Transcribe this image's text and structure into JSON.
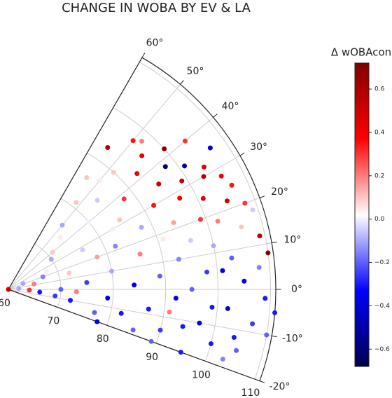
{
  "chart_data": {
    "type": "scatter",
    "polar": true,
    "title": "CHANGE IN WOBA BY EV & LA",
    "colorbar_label": "Δ wOBAcon",
    "colormap": "seismic",
    "r": [
      62,
      65,
      66,
      68,
      70,
      70,
      72,
      72,
      74,
      75,
      76,
      77,
      78,
      79,
      80,
      80,
      81,
      82,
      83,
      84,
      84,
      85,
      86,
      86,
      87,
      88,
      88,
      89,
      90,
      90,
      91,
      92,
      92,
      93,
      93,
      94,
      94,
      95,
      95,
      96,
      96,
      97,
      97,
      98,
      98,
      99,
      99,
      100,
      100,
      100,
      101,
      101,
      102,
      102,
      103,
      103,
      104,
      104,
      105,
      105,
      106,
      106,
      107,
      107,
      108,
      108,
      109,
      109,
      110,
      110,
      64,
      67,
      69,
      71,
      73,
      76,
      78,
      82,
      85,
      87,
      89,
      91,
      93,
      95,
      97,
      99,
      101,
      103,
      105,
      107,
      109,
      111,
      60,
      63,
      98,
      104
    ],
    "theta": [
      5,
      12,
      -5,
      25,
      0,
      35,
      -10,
      15,
      45,
      5,
      28,
      -15,
      20,
      -5,
      40,
      10,
      52,
      -12,
      30,
      2,
      45,
      -18,
      15,
      55,
      -8,
      25,
      38,
      5,
      48,
      -15,
      18,
      30,
      -3,
      42,
      10,
      -12,
      22,
      35,
      0,
      45,
      15,
      28,
      -10,
      38,
      5,
      20,
      32,
      -15,
      42,
      12,
      25,
      35,
      -5,
      18,
      30,
      8,
      40,
      -12,
      22,
      2,
      28,
      15,
      -8,
      35,
      20,
      5,
      12,
      -2,
      8,
      -10,
      -2,
      20,
      -8,
      40,
      -2,
      50,
      -20,
      22,
      32,
      50,
      -20,
      -8,
      55,
      -20,
      50,
      -5,
      5,
      -18,
      -15,
      25,
      18,
      -5,
      15,
      22,
      48,
      32
    ],
    "values": [
      -0.1,
      0.2,
      -0.3,
      0.05,
      -0.2,
      -0.1,
      -0.3,
      0.1,
      0.05,
      -0.25,
      -0.05,
      -0.2,
      0.15,
      -0.4,
      0.0,
      -0.1,
      0.1,
      -0.3,
      0.05,
      -0.35,
      -0.05,
      -0.2,
      0.2,
      0.1,
      -0.3,
      -0.1,
      0.3,
      -0.2,
      0.1,
      -0.25,
      0.05,
      0.35,
      -0.4,
      0.4,
      -0.15,
      -0.3,
      0.15,
      0.5,
      -0.2,
      0.45,
      -0.05,
      0.4,
      -0.35,
      -0.6,
      -0.25,
      0.3,
      0.55,
      -0.3,
      0.7,
      -0.1,
      0.45,
      -0.5,
      -0.45,
      0.2,
      0.6,
      -0.2,
      0.3,
      -0.3,
      0.5,
      -0.35,
      0.4,
      0.1,
      -0.25,
      -0.4,
      0.3,
      -0.15,
      0.55,
      -0.3,
      0.7,
      -0.2,
      0.3,
      -0.15,
      -0.25,
      0.1,
      0.2,
      -0.1,
      -0.35,
      -0.15,
      0.1,
      0.05,
      -0.2,
      0.2,
      0.6,
      -0.3,
      0.35,
      -0.3,
      -0.4,
      -0.15,
      -0.2,
      0.35,
      -0.05,
      -0.3,
      0.5,
      -0.1,
      0.2,
      0.45
    ],
    "rlim": [
      60,
      111
    ],
    "rticks": [
      60,
      70,
      80,
      90,
      100,
      110
    ],
    "thetalim": [
      -20,
      60
    ],
    "thetaticks": [
      {
        "value": -20,
        "label": "-20°"
      },
      {
        "value": -10,
        "label": "-10°"
      },
      {
        "value": 0,
        "label": "0°"
      },
      {
        "value": 10,
        "label": "10°"
      },
      {
        "value": 20,
        "label": "20°"
      },
      {
        "value": 30,
        "label": "30°"
      },
      {
        "value": 40,
        "label": "40°"
      },
      {
        "value": 50,
        "label": "50°"
      },
      {
        "value": 60,
        "label": "60°"
      }
    ],
    "clim": [
      -0.68,
      0.72
    ],
    "cticks": [
      {
        "value": -0.6,
        "label": "−0.6"
      },
      {
        "value": -0.4,
        "label": "−0.4"
      },
      {
        "value": -0.2,
        "label": "−0.2"
      },
      {
        "value": 0,
        "label": "0.0"
      },
      0.2,
      0.4,
      0.6
    ],
    "grid": true
  }
}
